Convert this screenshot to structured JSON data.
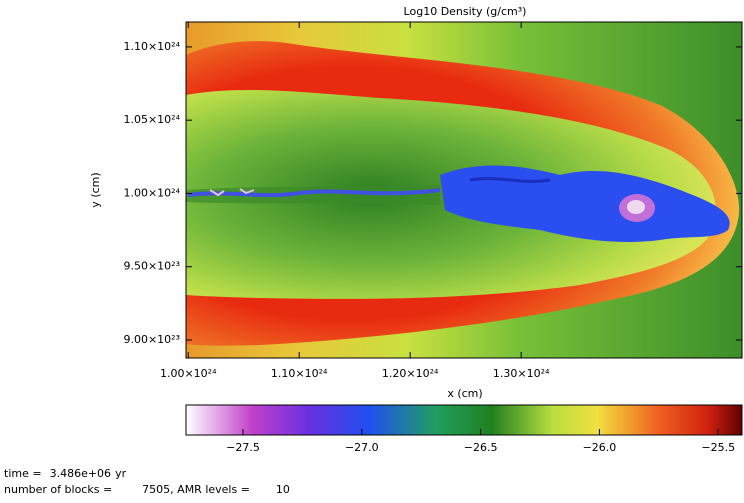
{
  "chart_data": {
    "type": "image",
    "title": "Log10 Density (g/cm³)",
    "x_label": "x (cm)",
    "y_label": "y (cm)",
    "xlim": [
      9.98e+23,
      1.499e+24
    ],
    "xticks": [
      {
        "value": 1e+24,
        "label": "1.00×10²⁴"
      },
      {
        "value": 1.1e+24,
        "label": "1.10×10²⁴"
      },
      {
        "value": 1.2e+24,
        "label": "1.20×10²⁴"
      },
      {
        "value": 1.3e+24,
        "label": "1.30×10²⁴"
      }
    ],
    "ylim": [
      8.877e+23,
      1.117e+24
    ],
    "yticks": [
      {
        "value": 1.1e+24,
        "label": "1.10×10²⁴"
      },
      {
        "value": 1.05e+24,
        "label": "1.05×10²⁴"
      },
      {
        "value": 1e+24,
        "label": "1.00×10²⁴"
      },
      {
        "value": 9.5e+23,
        "label": "9.50×10²³"
      },
      {
        "value": 9e+23,
        "label": "9.00×10²³"
      }
    ],
    "colorbar_lim": [
      -27.74,
      -25.4
    ],
    "colorbar_ticks": [
      {
        "value": -27.5,
        "label": "−27.5"
      },
      {
        "value": -27.0,
        "label": "−27.0"
      },
      {
        "value": -26.5,
        "label": "−26.5"
      },
      {
        "value": -26.0,
        "label": "−26.0"
      },
      {
        "value": -25.5,
        "label": "−25.5"
      }
    ],
    "footer": {
      "time_label": "time =",
      "time": "3.486e+06",
      "time_unit": "yr",
      "blocks_label": "number of blocks =",
      "blocks": 7505,
      "amr_label": ", AMR levels =",
      "amr_levels": 10
    }
  }
}
